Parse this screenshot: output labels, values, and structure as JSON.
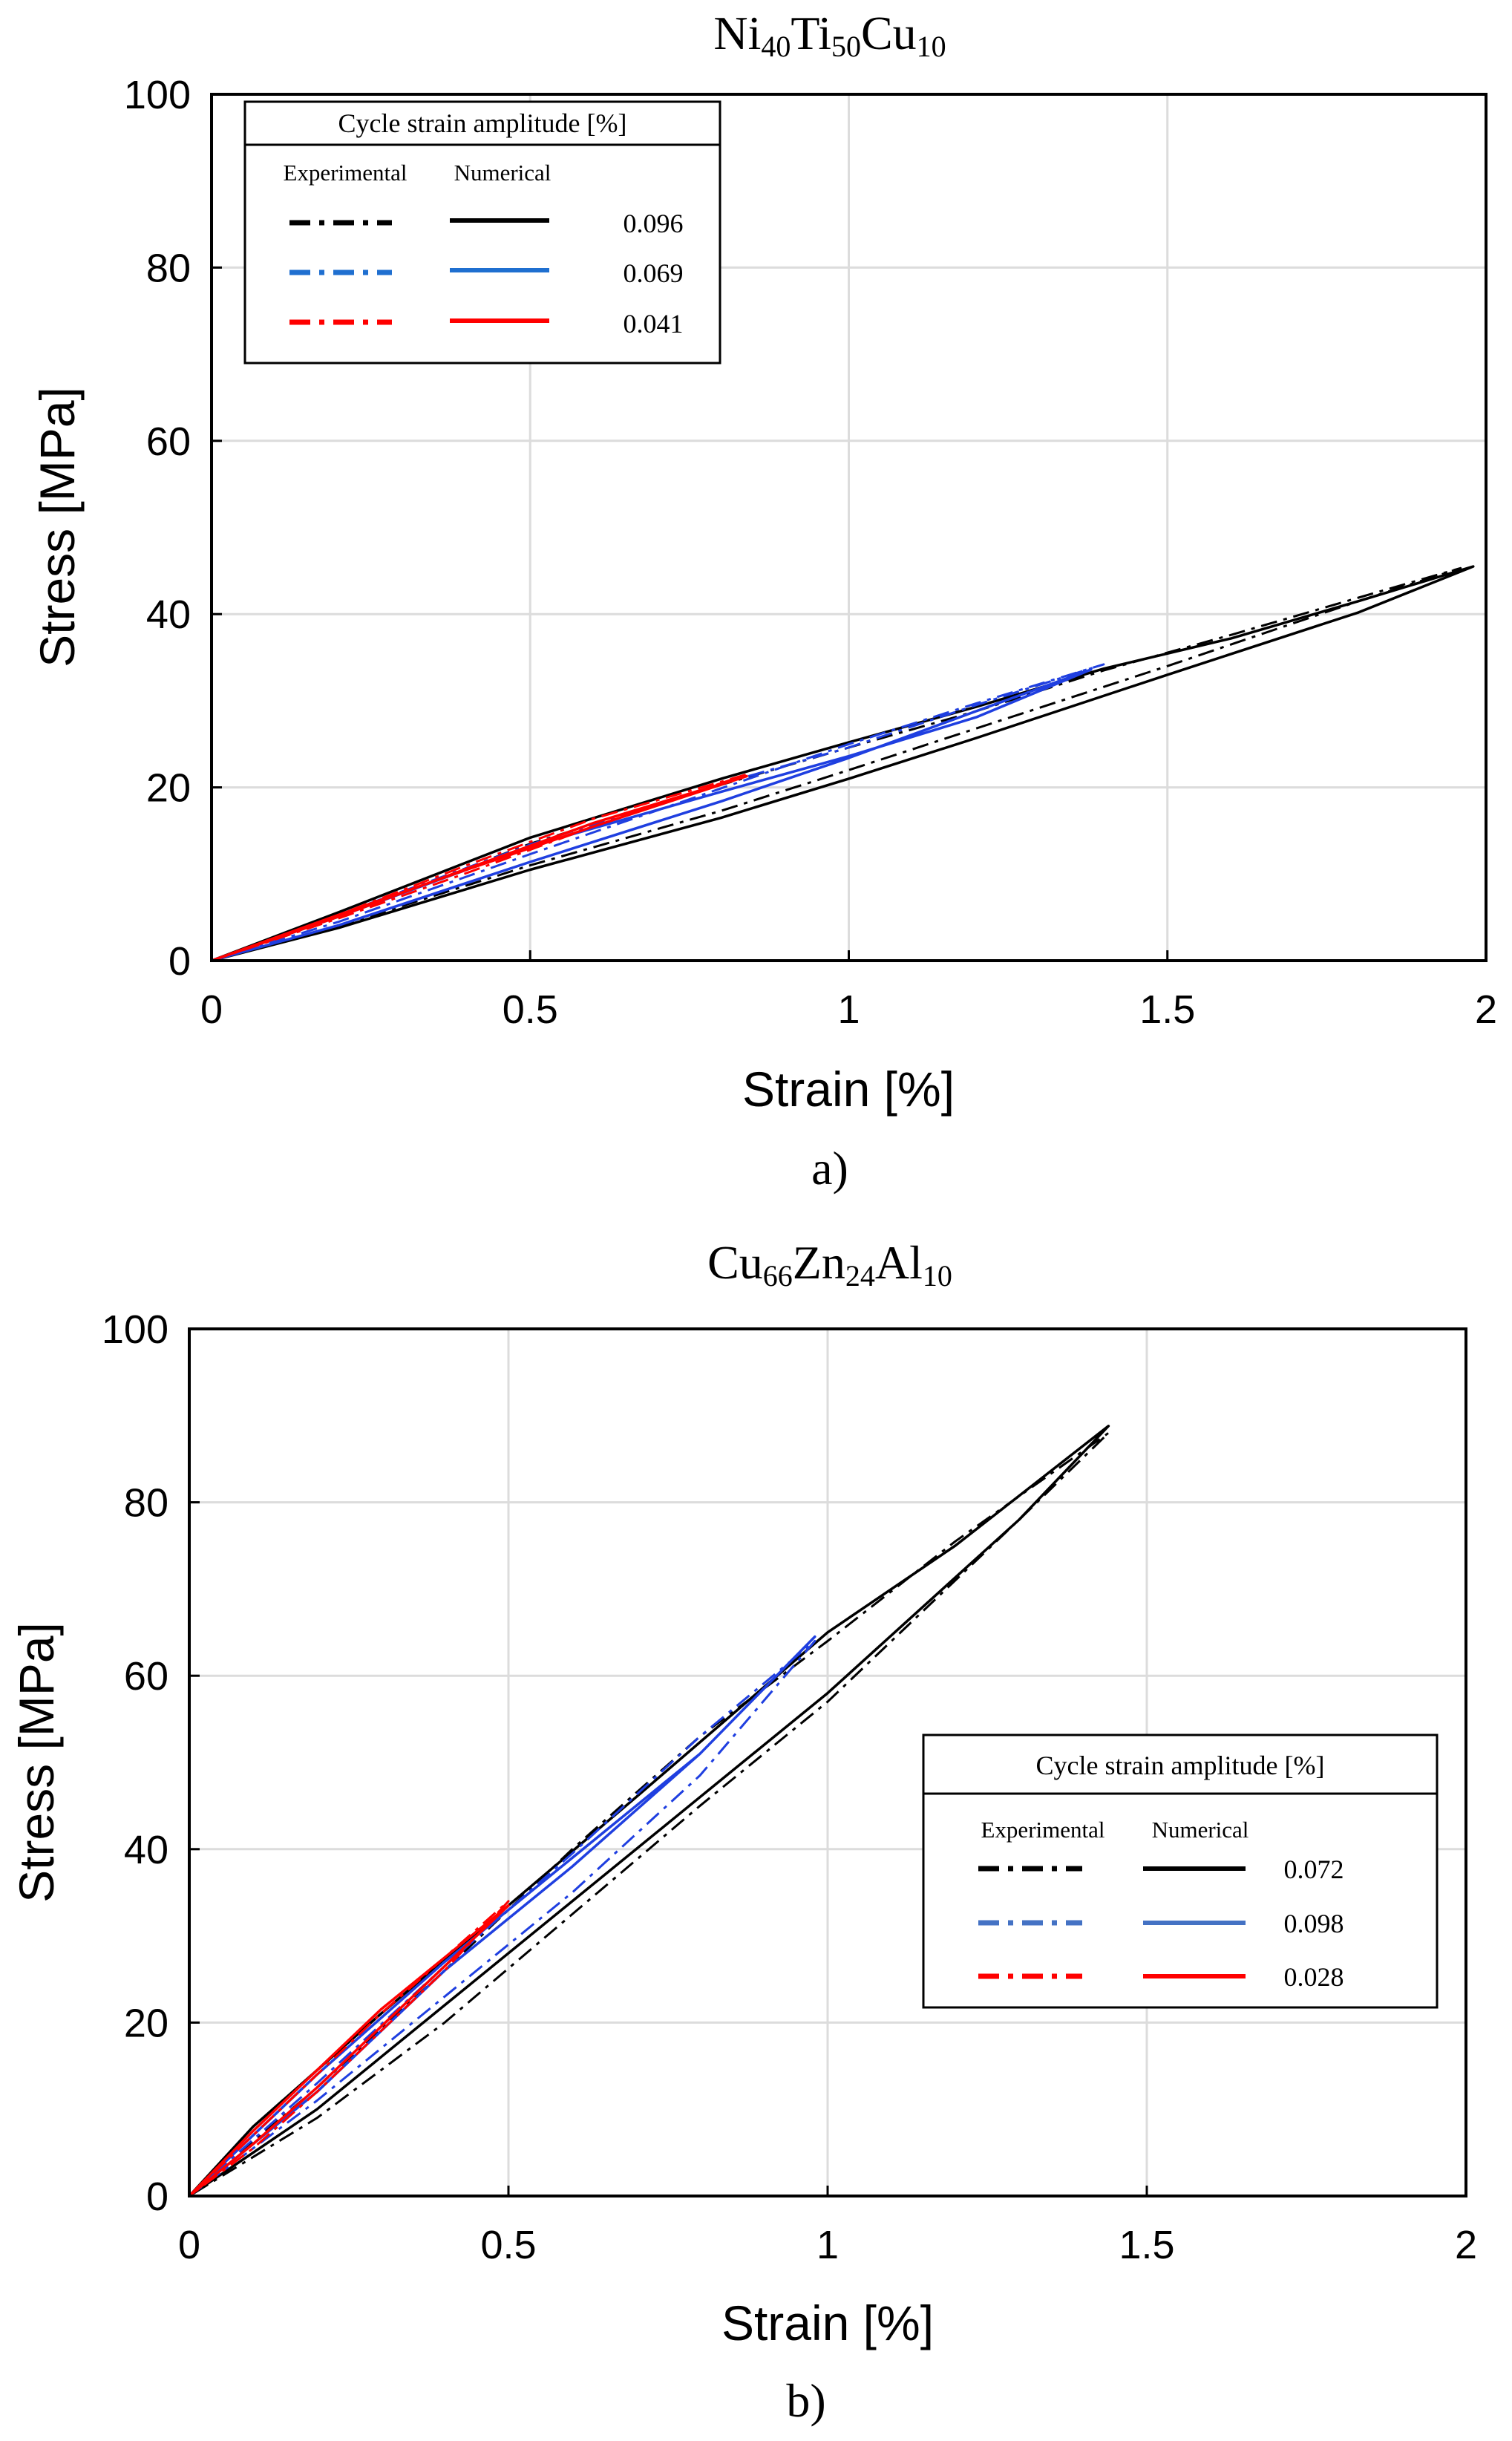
{
  "chart_data": [
    {
      "type": "line",
      "title_parts": [
        {
          "t": "Ni",
          "sub": false
        },
        {
          "t": "40",
          "sub": true
        },
        {
          "t": "Ti",
          "sub": false
        },
        {
          "t": "50",
          "sub": true
        },
        {
          "t": "Cu",
          "sub": false
        },
        {
          "t": "10",
          "sub": true
        }
      ],
      "xlabel": "Strain [%]",
      "ylabel": "Stress [MPa]",
      "xlim": [
        0,
        2
      ],
      "ylim": [
        0,
        100
      ],
      "xticks": [
        0,
        0.5,
        1,
        1.5,
        2
      ],
      "xtick_labels": [
        "0",
        "0.5",
        "1",
        "1.5",
        "2"
      ],
      "yticks": [
        0,
        20,
        40,
        60,
        80,
        100
      ],
      "ytick_labels": [
        "0",
        "20",
        "40",
        "60",
        "80",
        "100"
      ],
      "grid": true,
      "caption": "a)",
      "legend": {
        "placement": "top-left",
        "title": "Cycle strain amplitude [%]",
        "col_experimental": "Experimental",
        "col_numerical": "Numerical",
        "entries": [
          {
            "label": "0.096",
            "color": "#000000"
          },
          {
            "label": "0.069",
            "color": "#1f6fd0"
          },
          {
            "label": "0.041",
            "color": "#ff0000"
          }
        ]
      },
      "series": [
        {
          "name": "0.096 Numerical",
          "style": "solid",
          "color": "#000000",
          "x": [
            0,
            0.2,
            0.5,
            0.8,
            1.0,
            1.2,
            1.4,
            1.6,
            1.8,
            1.98,
            1.8,
            1.5,
            1.2,
            1.0,
            0.8,
            0.5,
            0.2,
            0
          ],
          "y": [
            0,
            5.6,
            14.2,
            21.0,
            25.2,
            29.3,
            33.7,
            37.2,
            41.5,
            45.5,
            40.2,
            33.0,
            25.7,
            21.0,
            16.5,
            10.5,
            3.8,
            0
          ]
        },
        {
          "name": "0.096 Experimental",
          "style": "dashdot",
          "color": "#000000",
          "x": [
            0,
            0.2,
            0.5,
            0.8,
            1.0,
            1.2,
            1.4,
            1.6,
            1.8,
            1.96,
            1.8,
            1.5,
            1.2,
            1.0,
            0.8,
            0.5,
            0.2,
            0
          ],
          "y": [
            0,
            5.0,
            13.5,
            20.3,
            24.6,
            28.8,
            33.5,
            37.6,
            41.9,
            45.3,
            41.5,
            34.0,
            26.8,
            22.0,
            17.3,
            11.0,
            4.0,
            0
          ]
        },
        {
          "name": "0.069 Numerical",
          "style": "solid",
          "color": "#1f3fe0",
          "x": [
            0,
            0.2,
            0.5,
            0.8,
            1.0,
            1.2,
            1.38,
            1.2,
            1.0,
            0.8,
            0.5,
            0.2,
            0
          ],
          "y": [
            0,
            5.1,
            13.2,
            19.5,
            23.6,
            28.1,
            33.6,
            28.8,
            23.4,
            18.4,
            11.4,
            4.1,
            0
          ]
        },
        {
          "name": "0.069 Experimental",
          "style": "dashdot",
          "color": "#1f3fe0",
          "x": [
            0,
            0.2,
            0.5,
            0.8,
            1.0,
            1.2,
            1.4,
            1.2,
            1.0,
            0.8,
            0.5,
            0.2,
            0
          ],
          "y": [
            0,
            5.3,
            13.4,
            20.4,
            24.6,
            29.5,
            34.2,
            29.7,
            25.0,
            19.9,
            12.3,
            4.5,
            0
          ]
        },
        {
          "name": "0.041 Numerical",
          "style": "solid",
          "color": "#ff0000",
          "x": [
            0,
            0.2,
            0.4,
            0.6,
            0.84,
            0.6,
            0.4,
            0.2,
            0
          ],
          "y": [
            0,
            5.3,
            10.5,
            15.5,
            21.3,
            15.9,
            10.6,
            5.1,
            0
          ]
        },
        {
          "name": "0.041 Experimental",
          "style": "dashdot",
          "color": "#ff0000",
          "x": [
            0,
            0.2,
            0.4,
            0.6,
            0.84,
            0.6,
            0.4,
            0.2,
            0
          ],
          "y": [
            0,
            4.9,
            10.1,
            15.5,
            21.5,
            16.4,
            11.0,
            5.3,
            0
          ]
        }
      ]
    },
    {
      "type": "line",
      "title_parts": [
        {
          "t": "Cu",
          "sub": false
        },
        {
          "t": "66",
          "sub": true
        },
        {
          "t": "Zn",
          "sub": false
        },
        {
          "t": "24",
          "sub": true
        },
        {
          "t": "Al",
          "sub": false
        },
        {
          "t": "10",
          "sub": true
        }
      ],
      "xlabel": "Strain [%]",
      "ylabel": "Stress [MPa]",
      "xlim": [
        0,
        2
      ],
      "ylim": [
        0,
        100
      ],
      "xticks": [
        0,
        0.5,
        1,
        1.5,
        2
      ],
      "xtick_labels": [
        "0",
        "0.5",
        "1",
        "1.5",
        "2"
      ],
      "yticks": [
        0,
        20,
        40,
        60,
        80,
        100
      ],
      "ytick_labels": [
        "0",
        "20",
        "40",
        "60",
        "80",
        "100"
      ],
      "grid": true,
      "caption": "b)",
      "legend": {
        "placement": "lower-right",
        "title": "Cycle strain amplitude [%]",
        "col_experimental": "Experimental",
        "col_numerical": "Numerical",
        "entries": [
          {
            "label": "0.072",
            "color": "#000000"
          },
          {
            "label": "0.098",
            "color": "#4472c4"
          },
          {
            "label": "0.028",
            "color": "#ff0000"
          }
        ]
      },
      "series": [
        {
          "name": "0.072 Numerical",
          "style": "solid",
          "color": "#000000",
          "x": [
            0,
            0.1,
            0.3,
            0.5,
            0.7,
            1.0,
            1.2,
            1.44,
            1.3,
            1.0,
            0.8,
            0.6,
            0.4,
            0.2,
            0
          ],
          "y": [
            0,
            8.0,
            21.0,
            33.5,
            46.0,
            65.0,
            75.0,
            88.8,
            78.0,
            58.0,
            46.0,
            34.0,
            22.0,
            10.0,
            0
          ]
        },
        {
          "name": "0.072 Experimental",
          "style": "dashdot",
          "color": "#000000",
          "x": [
            0,
            0.2,
            0.4,
            0.6,
            0.8,
            1.0,
            1.2,
            1.44,
            1.3,
            1.0,
            0.8,
            0.6,
            0.4,
            0.2,
            0
          ],
          "y": [
            0,
            12.5,
            26.0,
            40.0,
            53.0,
            64.0,
            75.5,
            88.0,
            78.0,
            57.0,
            45.0,
            32.5,
            20.0,
            9.0,
            0
          ]
        },
        {
          "name": "0.098 Numerical",
          "style": "solid",
          "color": "#1f3fe0",
          "x": [
            0,
            0.2,
            0.4,
            0.6,
            0.8,
            0.98,
            0.8,
            0.6,
            0.4,
            0.2,
            0
          ],
          "y": [
            0,
            14.0,
            27.0,
            39.0,
            51.0,
            64.5,
            51.0,
            38.0,
            26.0,
            12.0,
            0
          ]
        },
        {
          "name": "0.098 Experimental",
          "style": "dashdot",
          "color": "#1f3fe0",
          "x": [
            0,
            0.2,
            0.4,
            0.6,
            0.8,
            0.98,
            0.8,
            0.6,
            0.4,
            0.2,
            0
          ],
          "y": [
            0,
            13.0,
            26.5,
            39.5,
            53.0,
            64.0,
            48.5,
            35.0,
            23.0,
            11.0,
            0
          ]
        },
        {
          "name": "0.028 Numerical",
          "style": "solid",
          "color": "#ff0000",
          "x": [
            0,
            0.1,
            0.2,
            0.3,
            0.4,
            0.5,
            0.4,
            0.3,
            0.2,
            0.1,
            0
          ],
          "y": [
            0,
            7.5,
            14.5,
            21.5,
            27.5,
            33.5,
            26.5,
            19.5,
            12.5,
            6.0,
            0
          ]
        },
        {
          "name": "0.028 Experimental",
          "style": "dashdot",
          "color": "#ff0000",
          "x": [
            0,
            0.1,
            0.2,
            0.3,
            0.4,
            0.5,
            0.4,
            0.3,
            0.2,
            0.1,
            0
          ],
          "y": [
            0,
            7.0,
            14.0,
            21.0,
            27.5,
            34.0,
            26.0,
            19.0,
            12.0,
            5.5,
            0
          ]
        }
      ]
    }
  ]
}
